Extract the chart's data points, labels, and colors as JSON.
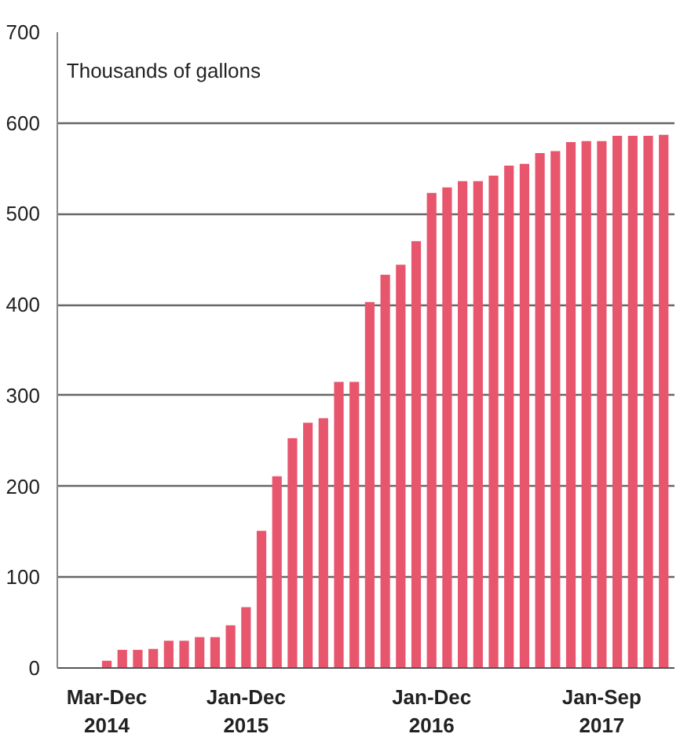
{
  "chart_data": {
    "type": "bar",
    "ylabel": "Thousands of gallons",
    "categories": [
      null,
      null,
      "Mar-Dec\n2014",
      null,
      null,
      null,
      null,
      null,
      null,
      null,
      null,
      "Jan-Dec\n2015",
      null,
      null,
      null,
      null,
      null,
      null,
      null,
      null,
      null,
      null,
      null,
      "Jan-Dec\n2016",
      null,
      null,
      null,
      null,
      null,
      null,
      null,
      null,
      null,
      null,
      "Jan-Sep\n2017",
      null,
      null,
      null,
      null
    ],
    "values": [
      null,
      null,
      8,
      20,
      20,
      21,
      30,
      30,
      34,
      34,
      47,
      67,
      151,
      211,
      253,
      270,
      275,
      315,
      315,
      403,
      433,
      444,
      470,
      523,
      529,
      536,
      536,
      542,
      553,
      555,
      567,
      569,
      579,
      580,
      580,
      586,
      586,
      586,
      587
    ],
    "color": "#e8566e",
    "ylim": [
      0,
      700
    ],
    "yticks": [
      0,
      100,
      200,
      300,
      400,
      500,
      600,
      700
    ],
    "grid": "y"
  }
}
